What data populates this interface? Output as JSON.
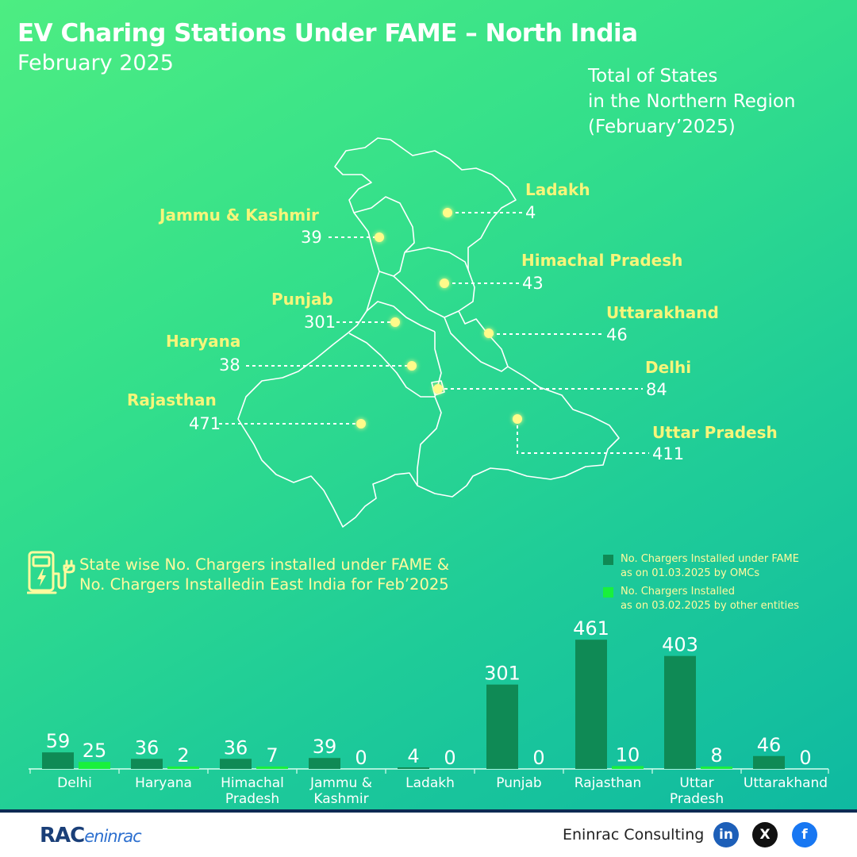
{
  "header": {
    "title": "EV Charing Stations Under FAME – North India",
    "subtitle": "February 2025",
    "total_lines": [
      "Total of States",
      "in the Northern Region",
      "(February’2025)"
    ]
  },
  "map_labels": [
    {
      "id": "ladakh",
      "name": "Ladakh",
      "value": "4"
    },
    {
      "id": "jk",
      "name": "Jammu & Kashmir",
      "value": "39"
    },
    {
      "id": "hp",
      "name": "Himachal Pradesh",
      "value": "43"
    },
    {
      "id": "punjab",
      "name": "Punjab",
      "value": "301"
    },
    {
      "id": "uk",
      "name": "Uttarakhand",
      "value": "46"
    },
    {
      "id": "haryana",
      "name": "Haryana",
      "value": "38"
    },
    {
      "id": "delhi",
      "name": "Delhi",
      "value": "84"
    },
    {
      "id": "rajasthan",
      "name": "Rajasthan",
      "value": "471"
    },
    {
      "id": "up",
      "name": "Uttar Pradesh",
      "value": "411"
    }
  ],
  "section": {
    "lines": [
      "State wise No. Chargers installed under FAME &",
      "No. Chargers Installedin East India for Feb’2025"
    ],
    "icon": "ev-charger-icon"
  },
  "legend": [
    {
      "lines": [
        "No. Chargers Installed under FAME",
        "as on 01.03.2025 by OMCs"
      ],
      "color": "#0f8a55"
    },
    {
      "lines": [
        "No. Chargers Installed",
        "as on 03.02.2025 by other entities"
      ],
      "color": "#19f03c"
    }
  ],
  "chart_data": {
    "type": "bar",
    "categories": [
      [
        "Delhi"
      ],
      [
        "Haryana"
      ],
      [
        "Himachal",
        "Pradesh"
      ],
      [
        "Jammu &",
        "Kashmir"
      ],
      [
        "Ladakh"
      ],
      [
        "Punjab"
      ],
      [
        "Rajasthan"
      ],
      [
        "Uttar",
        "Pradesh"
      ],
      [
        "Uttarakhand"
      ]
    ],
    "series": [
      {
        "name": "No. Chargers Installed under FAME as on 01.03.2025 by OMCs",
        "color": "#0f8a55",
        "values": [
          59,
          36,
          36,
          39,
          4,
          301,
          461,
          403,
          46
        ]
      },
      {
        "name": "No. Chargers Installed as on 03.02.2025 by other entities",
        "color": "#19f03c",
        "values": [
          25,
          2,
          7,
          0,
          0,
          0,
          10,
          8,
          0
        ]
      }
    ],
    "ylim": [
      0,
      470
    ],
    "data_labels": true,
    "grid": false
  },
  "footer": {
    "brand_main": "RAC",
    "brand_sub": "eninrac",
    "company": "Eninrac Consulting",
    "social": [
      {
        "icon": "linkedin-icon",
        "glyph": "in",
        "color": "#1d5fb8"
      },
      {
        "icon": "x-icon",
        "glyph": "X",
        "color": "#111111"
      },
      {
        "icon": "facebook-icon",
        "glyph": "f",
        "color": "#1877f2"
      }
    ]
  }
}
